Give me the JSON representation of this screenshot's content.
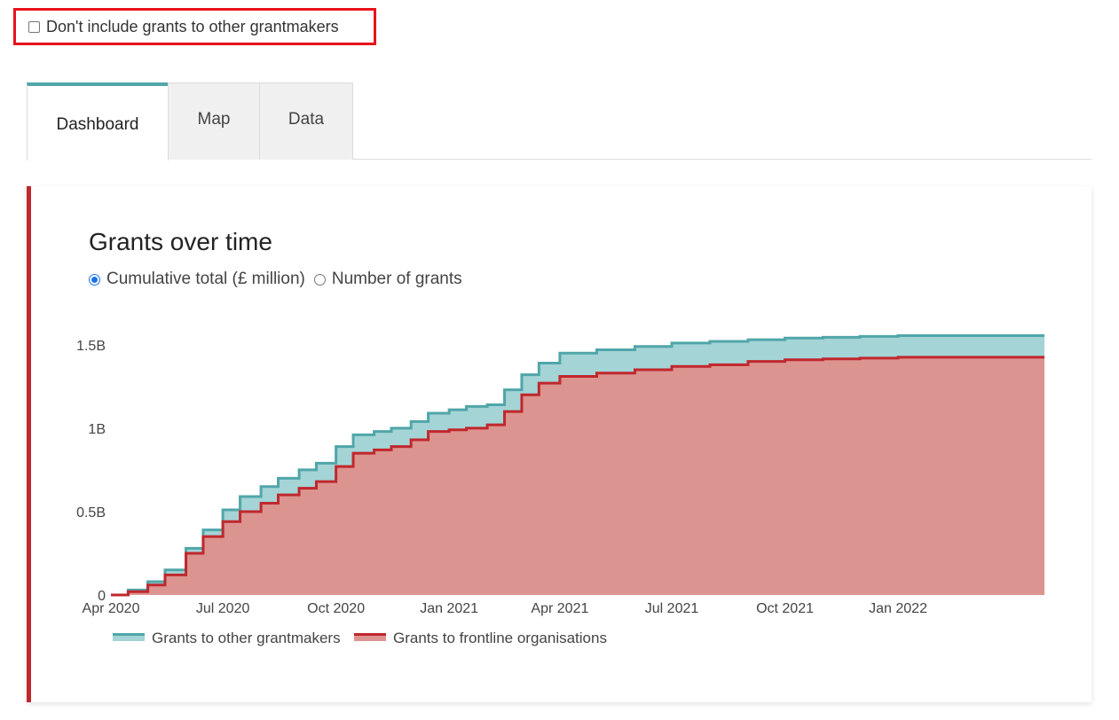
{
  "filter": {
    "label": "Don't include grants to other grantmakers",
    "checked": false
  },
  "tabs": [
    {
      "label": "Dashboard",
      "active": true
    },
    {
      "label": "Map",
      "active": false
    },
    {
      "label": "Data",
      "active": false
    }
  ],
  "panel": {
    "title": "Grants over time",
    "radio_options": [
      {
        "label": "Cumulative total (£ million)",
        "checked": true
      },
      {
        "label": "Number of grants",
        "checked": false
      }
    ]
  },
  "colors": {
    "accent": "#50a6a9",
    "panel_border": "#c0272d",
    "filter_border": "#e8141b"
  },
  "chart_data": {
    "type": "area",
    "stacked": true,
    "x_ticks": [
      "Apr 2020",
      "Jul 2020",
      "Oct 2020",
      "Jan 2021",
      "Apr 2021",
      "Jul 2021",
      "Oct 2021",
      "Jan 2022"
    ],
    "y_ticks": [
      "0",
      "0.5B",
      "1B",
      "1.5B"
    ],
    "y_tick_values": [
      0,
      0.5,
      1,
      1.5
    ],
    "ylim": [
      0,
      1.6
    ],
    "x_range": [
      "2020-04-01",
      "2022-04-30"
    ],
    "legend_position": "bottom-left",
    "dates": [
      "2020-04-01",
      "2020-04-15",
      "2020-05-01",
      "2020-05-15",
      "2020-06-01",
      "2020-06-15",
      "2020-07-01",
      "2020-07-15",
      "2020-08-01",
      "2020-08-15",
      "2020-09-01",
      "2020-09-15",
      "2020-10-01",
      "2020-10-15",
      "2020-11-01",
      "2020-11-15",
      "2020-12-01",
      "2020-12-15",
      "2021-01-01",
      "2021-01-15",
      "2021-02-01",
      "2021-02-15",
      "2021-03-01",
      "2021-03-15",
      "2021-04-01",
      "2021-05-01",
      "2021-06-01",
      "2021-07-01",
      "2021-08-01",
      "2021-09-01",
      "2021-10-01",
      "2021-11-01",
      "2021-12-01",
      "2022-01-01",
      "2022-02-01",
      "2022-03-01",
      "2022-04-30"
    ],
    "series": [
      {
        "name": "Grants to frontline organisations",
        "color": "#c0272d",
        "fill": "#dc9490",
        "values": [
          0.0,
          0.02,
          0.06,
          0.12,
          0.25,
          0.35,
          0.44,
          0.5,
          0.55,
          0.6,
          0.64,
          0.68,
          0.77,
          0.85,
          0.87,
          0.89,
          0.93,
          0.98,
          0.99,
          1.0,
          1.02,
          1.1,
          1.2,
          1.27,
          1.31,
          1.33,
          1.35,
          1.37,
          1.38,
          1.4,
          1.41,
          1.415,
          1.42,
          1.425,
          1.425,
          1.425,
          1.425
        ]
      },
      {
        "name": "Grants to other grantmakers",
        "color": "#50a6a9",
        "fill": "#a4d4d6",
        "values": [
          0.0,
          0.01,
          0.02,
          0.03,
          0.03,
          0.04,
          0.07,
          0.09,
          0.1,
          0.1,
          0.11,
          0.11,
          0.12,
          0.11,
          0.11,
          0.11,
          0.11,
          0.11,
          0.12,
          0.13,
          0.12,
          0.13,
          0.12,
          0.12,
          0.14,
          0.14,
          0.14,
          0.14,
          0.14,
          0.13,
          0.13,
          0.13,
          0.13,
          0.13,
          0.13,
          0.13,
          0.13
        ]
      }
    ],
    "legend": [
      "Grants to other grantmakers",
      "Grants to frontline organisations"
    ]
  }
}
